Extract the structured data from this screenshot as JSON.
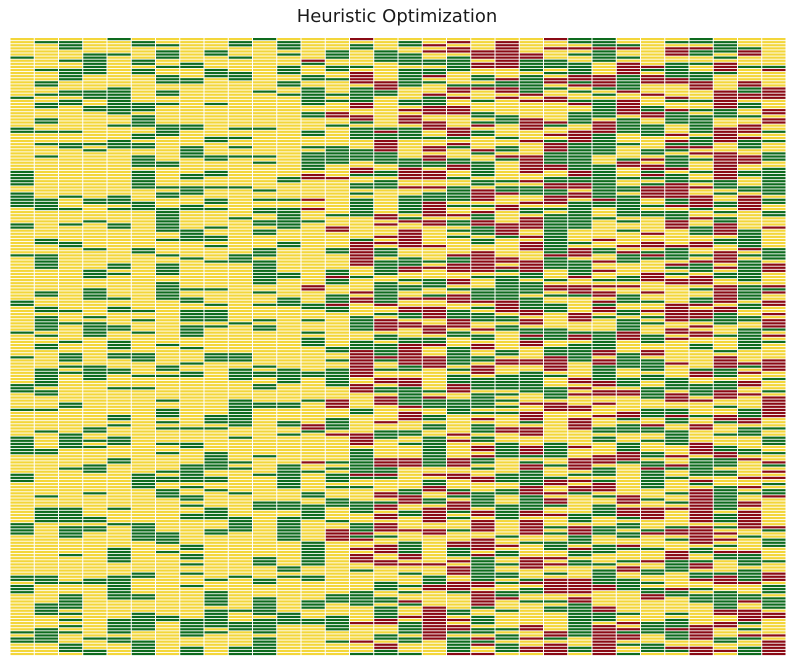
{
  "title": "Heuristic Optimization",
  "chart_data": {
    "type": "heatmap",
    "title": "Heuristic Optimization",
    "xlabel": "",
    "ylabel": "",
    "grid": false,
    "legend": "none",
    "n_columns": 32,
    "n_rows": 200,
    "categories_legend": [
      {
        "code": 0,
        "color": "#f3d63a"
      },
      {
        "code": 1,
        "color": "#0e6b1e"
      },
      {
        "code": 2,
        "color": "#8a0a14"
      }
    ],
    "cell_separator_color": "#ffffff",
    "column_profile": [
      {
        "column": 1,
        "p_green": 0.18,
        "p_red": 0.0
      },
      {
        "column": 2,
        "p_green": 0.2,
        "p_red": 0.0
      },
      {
        "column": 3,
        "p_green": 0.2,
        "p_red": 0.0
      },
      {
        "column": 4,
        "p_green": 0.18,
        "p_red": 0.0
      },
      {
        "column": 5,
        "p_green": 0.18,
        "p_red": 0.0
      },
      {
        "column": 6,
        "p_green": 0.2,
        "p_red": 0.0
      },
      {
        "column": 7,
        "p_green": 0.18,
        "p_red": 0.0
      },
      {
        "column": 8,
        "p_green": 0.2,
        "p_red": 0.0
      },
      {
        "column": 9,
        "p_green": 0.2,
        "p_red": 0.0
      },
      {
        "column": 10,
        "p_green": 0.18,
        "p_red": 0.0
      },
      {
        "column": 11,
        "p_green": 0.2,
        "p_red": 0.0
      },
      {
        "column": 12,
        "p_green": 0.18,
        "p_red": 0.0
      },
      {
        "column": 13,
        "p_green": 0.14,
        "p_red": 0.05
      },
      {
        "column": 14,
        "p_green": 0.2,
        "p_red": 0.06
      },
      {
        "column": 15,
        "p_green": 0.22,
        "p_red": 0.14
      },
      {
        "column": 16,
        "p_green": 0.22,
        "p_red": 0.16
      },
      {
        "column": 17,
        "p_green": 0.22,
        "p_red": 0.18
      },
      {
        "column": 18,
        "p_green": 0.22,
        "p_red": 0.18
      },
      {
        "column": 19,
        "p_green": 0.22,
        "p_red": 0.2
      },
      {
        "column": 20,
        "p_green": 0.22,
        "p_red": 0.2
      },
      {
        "column": 21,
        "p_green": 0.22,
        "p_red": 0.2
      },
      {
        "column": 22,
        "p_green": 0.22,
        "p_red": 0.18
      },
      {
        "column": 23,
        "p_green": 0.22,
        "p_red": 0.2
      },
      {
        "column": 24,
        "p_green": 0.22,
        "p_red": 0.2
      },
      {
        "column": 25,
        "p_green": 0.22,
        "p_red": 0.2
      },
      {
        "column": 26,
        "p_green": 0.22,
        "p_red": 0.2
      },
      {
        "column": 27,
        "p_green": 0.22,
        "p_red": 0.2
      },
      {
        "column": 28,
        "p_green": 0.22,
        "p_red": 0.2
      },
      {
        "column": 29,
        "p_green": 0.22,
        "p_red": 0.22
      },
      {
        "column": 30,
        "p_green": 0.22,
        "p_red": 0.2
      },
      {
        "column": 31,
        "p_green": 0.22,
        "p_red": 0.16
      },
      {
        "column": 32,
        "p_green": 0.22,
        "p_red": 0.16
      }
    ]
  }
}
